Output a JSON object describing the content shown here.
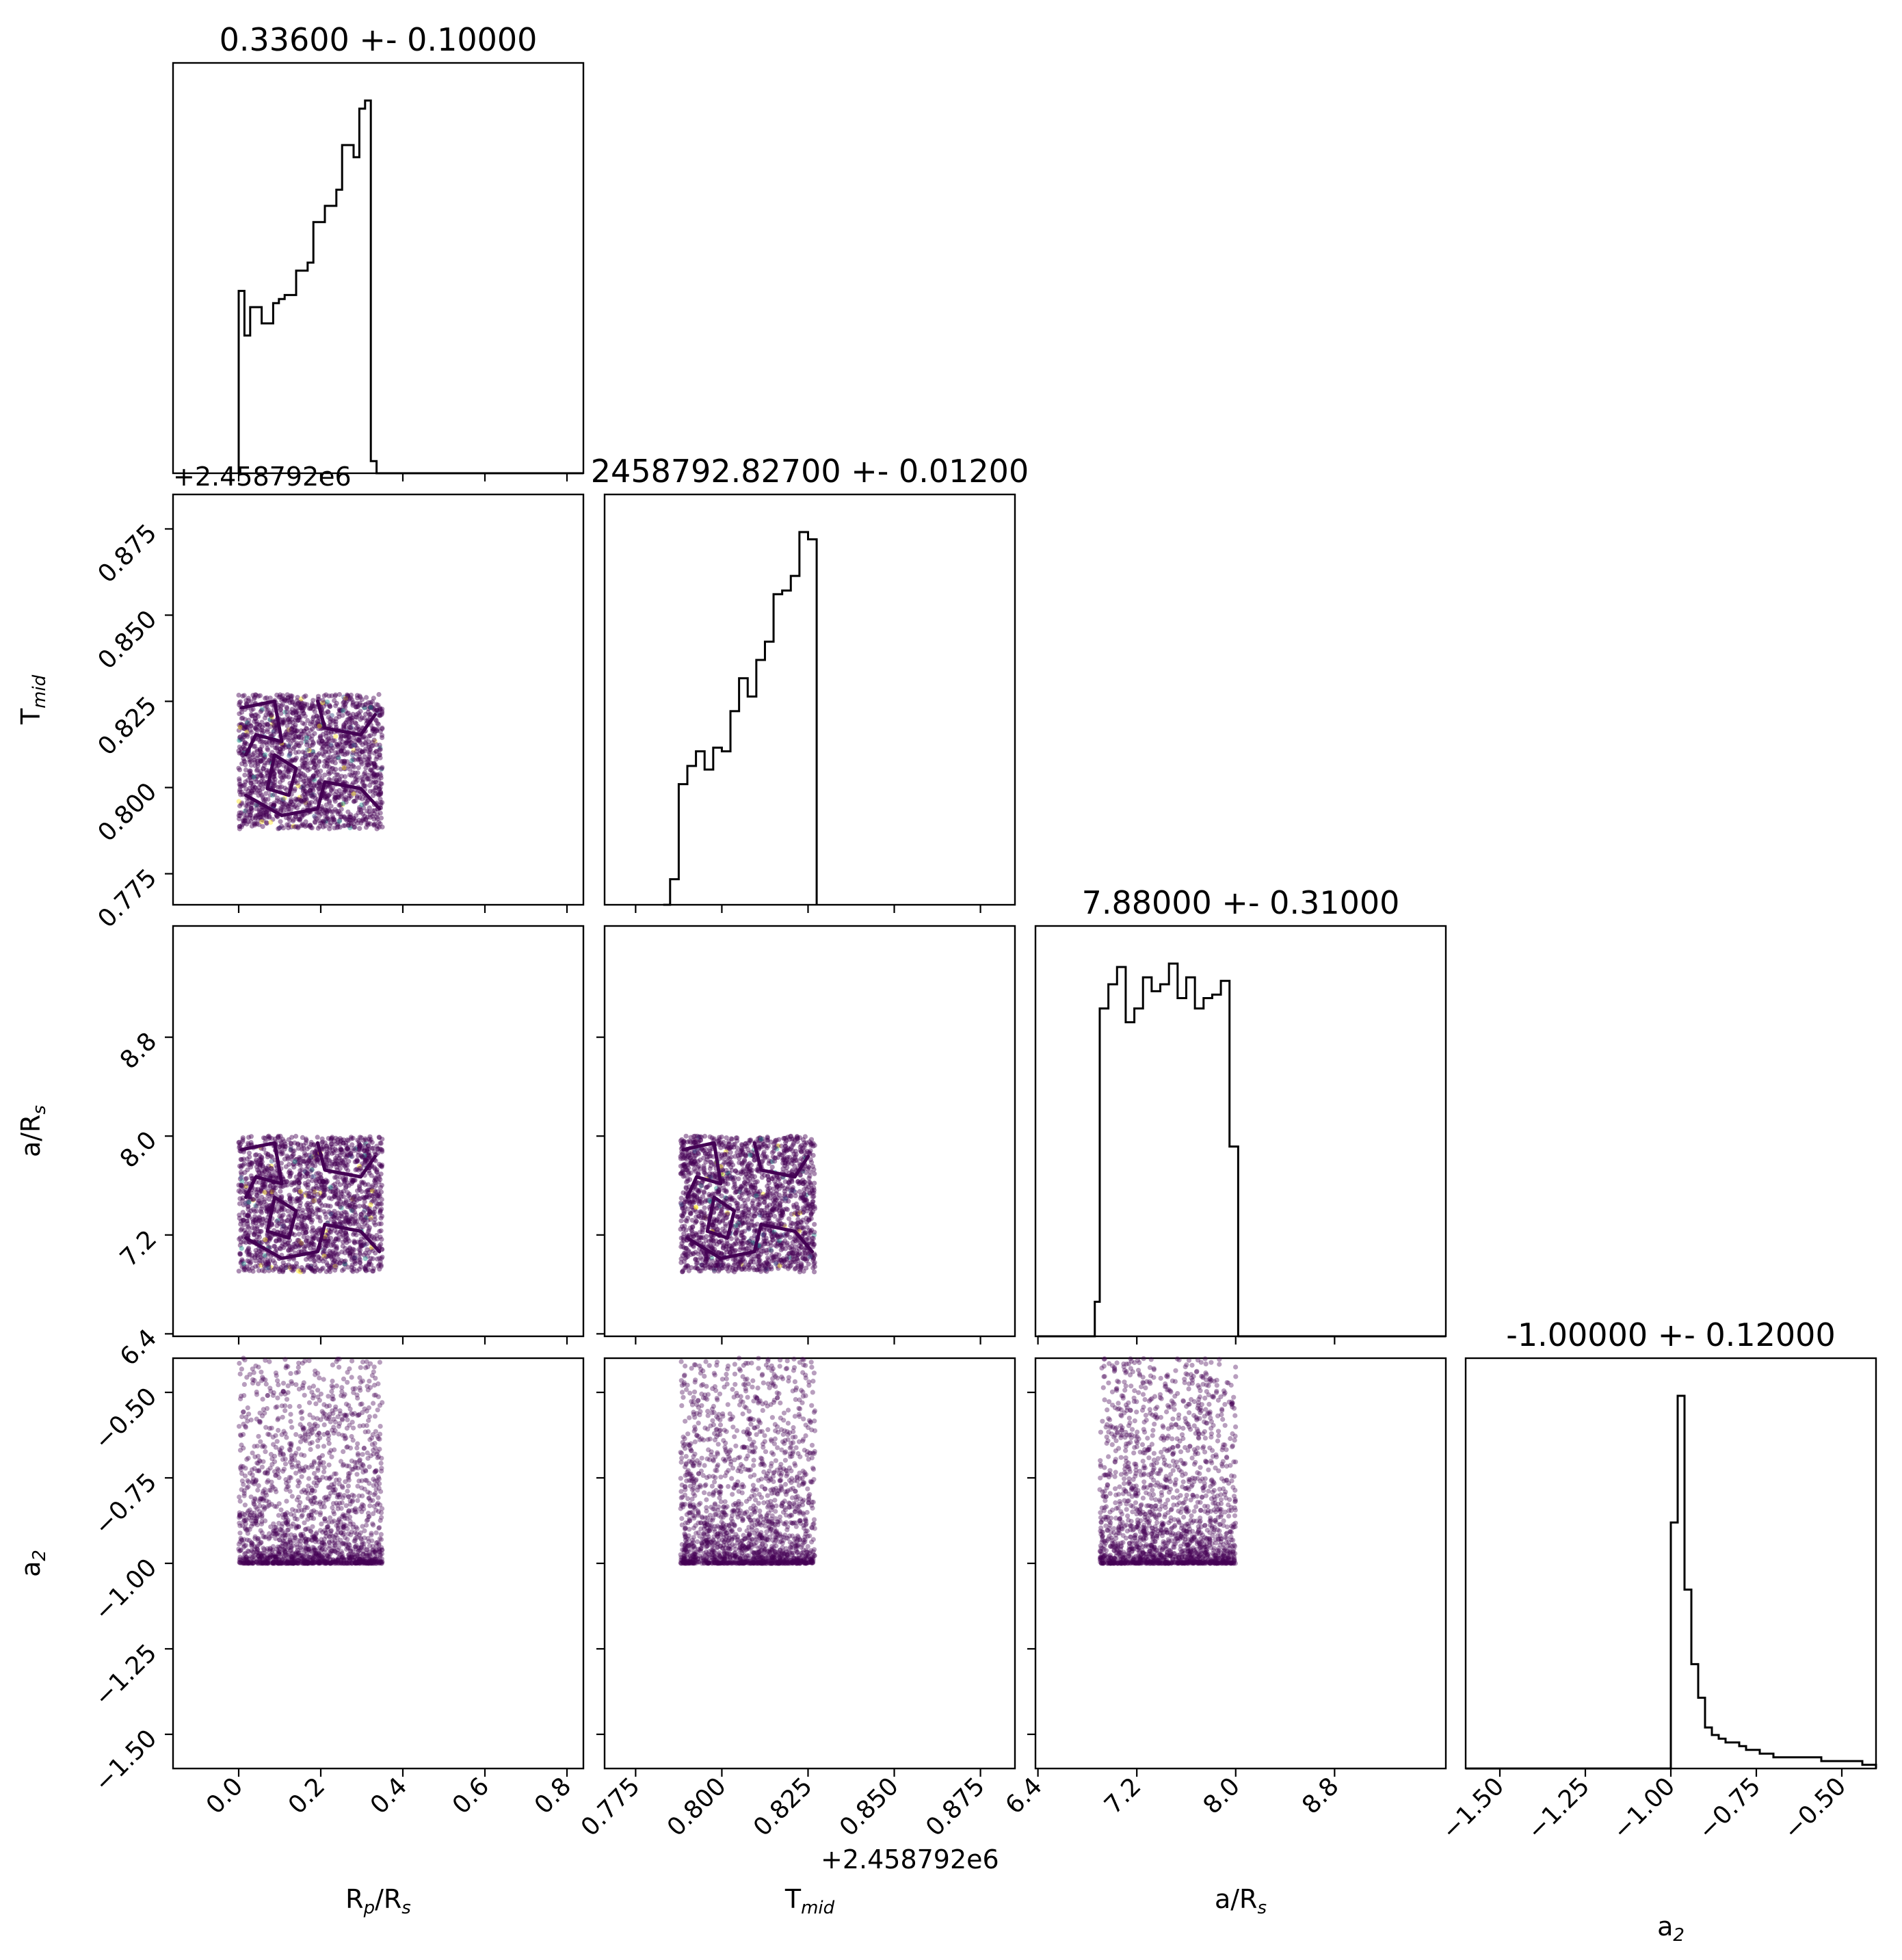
{
  "colors": {
    "axes": "#000000",
    "histogram": "#000000",
    "scatter": "#440154",
    "scatter_secondary": [
      "#3b528b",
      "#21918c",
      "#fde725"
    ],
    "contour": "#440154"
  },
  "chart_data": {
    "type": "scatter",
    "layout": "corner-plot",
    "grid": false,
    "n_params": 4,
    "parameters": [
      {
        "name": "R_p/R_s",
        "label_text": "R",
        "label_sub": "p",
        "label_post": "/R",
        "label_sub2": "s",
        "title": "0.33600 +- 0.10000",
        "range": [
          -0.16,
          0.84
        ],
        "ticks": [
          0.0,
          0.2,
          0.4,
          0.6,
          0.8
        ],
        "tick_labels": [
          "0.0",
          "0.2",
          "0.4",
          "0.6",
          "0.8"
        ],
        "sample_range": [
          0.0,
          0.35
        ],
        "hist_edges": [
          0.0,
          0.014,
          0.028,
          0.042,
          0.056,
          0.07,
          0.084,
          0.098,
          0.112,
          0.126,
          0.14,
          0.154,
          0.168,
          0.182,
          0.196,
          0.21,
          0.224,
          0.238,
          0.252,
          0.266,
          0.28,
          0.294,
          0.308,
          0.322,
          0.336,
          0.35
        ],
        "hist_counts": [
          45,
          34,
          41,
          41,
          37,
          37,
          42,
          43,
          44,
          44,
          50,
          50,
          52,
          62,
          62,
          66,
          66,
          70,
          81,
          81,
          78,
          90,
          92,
          3,
          0
        ]
      },
      {
        "name": "T_mid",
        "label_text": "T",
        "label_sub": "mid",
        "label_post": "",
        "label_sub2": "",
        "title": "2458792.82700 +- 0.01200",
        "range": [
          0.766,
          0.885
        ],
        "ticks": [
          0.775,
          0.8,
          0.825,
          0.85,
          0.875
        ],
        "tick_labels": [
          "0.775",
          "0.800",
          "0.825",
          "0.850",
          "0.875"
        ],
        "offset_text": "+2.458792e6",
        "sample_range": [
          0.788,
          0.827
        ],
        "hist_edges": [
          0.785,
          0.7875,
          0.79,
          0.7925,
          0.795,
          0.7975,
          0.8,
          0.8025,
          0.805,
          0.8075,
          0.81,
          0.8125,
          0.815,
          0.8175,
          0.82,
          0.8225,
          0.825,
          0.8275
        ],
        "hist_counts": [
          7,
          33,
          38,
          42,
          37,
          43,
          42,
          53,
          62,
          57,
          67,
          72,
          85,
          86,
          90,
          102,
          100
        ],
        "hist_extra": {
          "pre": [
            0.783,
            0.785,
            0
          ],
          "post": [
            0.8275,
            0.8275,
            87
          ]
        }
      },
      {
        "name": "a/R_s",
        "label_text": "a/R",
        "label_sub": "s",
        "label_post": "",
        "label_sub2": "",
        "title": "7.88000 +- 0.31000",
        "range": [
          6.38,
          9.7
        ],
        "ticks": [
          6.4,
          7.2,
          8.0,
          8.8
        ],
        "tick_labels": [
          "6.4",
          "7.2",
          "8.0",
          "8.8"
        ],
        "sample_range": [
          6.9,
          8.0
        ],
        "hist_edges": [
          6.86,
          6.9,
          6.97,
          7.04,
          7.11,
          7.18,
          7.25,
          7.32,
          7.39,
          7.46,
          7.53,
          7.6,
          7.67,
          7.74,
          7.81,
          7.88,
          7.95,
          8.02,
          8.09
        ],
        "hist_counts": [
          10,
          95,
          102,
          107,
          91,
          95,
          104,
          100,
          102,
          108,
          98,
          104,
          95,
          98,
          99,
          103,
          55,
          0
        ],
        "hist_extra": {
          "pre": [
            6.4,
            6.86,
            0
          ],
          "post": [
            8.09,
            9.7,
            0
          ]
        }
      },
      {
        "name": "a_2",
        "label_text": "a",
        "label_sub": "2",
        "label_post": "",
        "label_sub2": "",
        "title": "-1.00000 +- 0.12000",
        "range": [
          -1.6,
          -0.4
        ],
        "ticks": [
          -1.5,
          -1.25,
          -1.0,
          -0.75,
          -0.5
        ],
        "tick_labels": [
          "−1.50",
          "−1.25",
          "−1.00",
          "−0.75",
          "−0.50"
        ],
        "sample_range": [
          -1.0,
          -0.4
        ],
        "hist_edges": [
          -1.6,
          -1.0,
          -0.98,
          -0.96,
          -0.94,
          -0.92,
          -0.9,
          -0.88,
          -0.86,
          -0.84,
          -0.82,
          -0.8,
          -0.78,
          -0.76,
          -0.74,
          -0.72,
          -0.7,
          -0.68,
          -0.66,
          -0.64,
          -0.62,
          -0.6,
          -0.58,
          -0.56,
          -0.54,
          -0.52,
          -0.5,
          -0.48,
          -0.46,
          -0.44,
          -0.42,
          -0.4
        ],
        "hist_counts": [
          0,
          66,
          100,
          48,
          28,
          19,
          11,
          9,
          8,
          7,
          7,
          6,
          5,
          5,
          4,
          4,
          3,
          3,
          3,
          3,
          3,
          3,
          3,
          2,
          2,
          2,
          2,
          2,
          2,
          1,
          1
        ]
      }
    ],
    "row_offset_text": "+2.458792e6",
    "scatter_points_per_panel": 1800
  }
}
